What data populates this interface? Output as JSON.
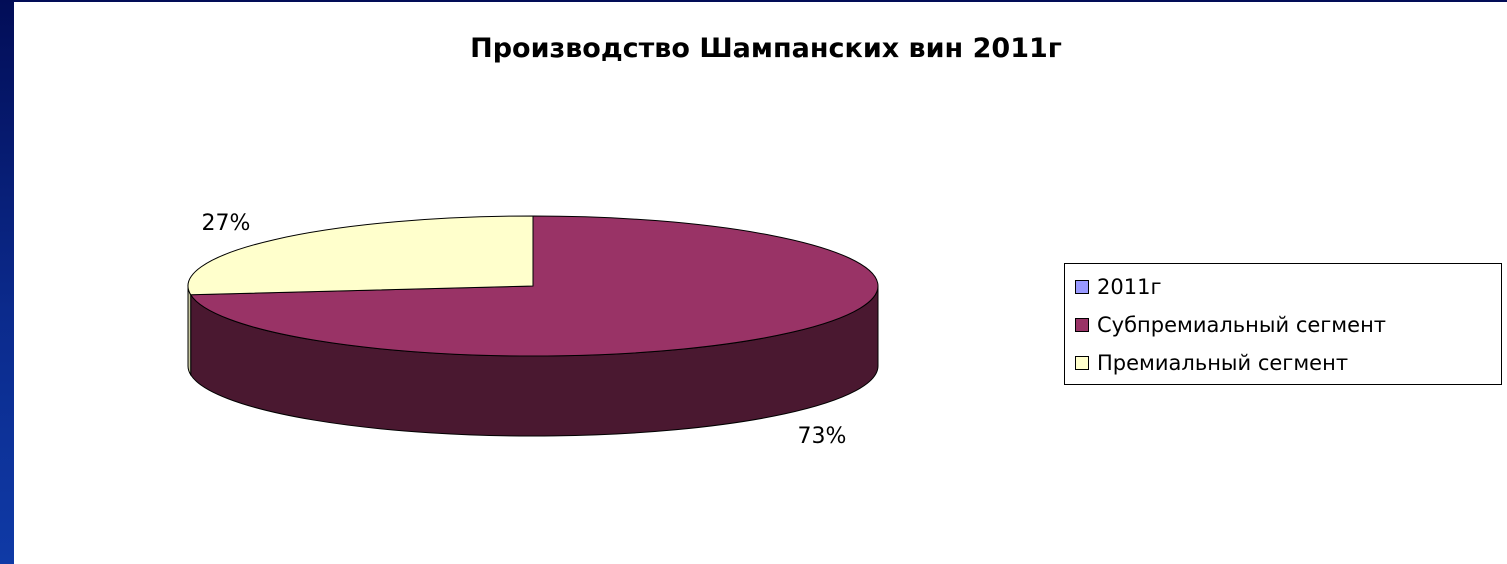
{
  "chart_data": {
    "type": "pie",
    "title": "Производство Шампанских вин 2011г",
    "legend_position": "right",
    "three_d": true,
    "legend": [
      {
        "label": "2011г",
        "color": "#9999ff"
      },
      {
        "label": "Субпремиальный сегмент",
        "color": "#993366"
      },
      {
        "label": "Премиальный сегмент",
        "color": "#ffffcc"
      }
    ],
    "slices": [
      {
        "name": "Субпремиальный сегмент",
        "value": 73,
        "label": "73%",
        "color": "#993366",
        "side_color": "#4a1830"
      },
      {
        "name": "Премиальный сегмент",
        "value": 27,
        "label": "27%",
        "color": "#ffffcc",
        "side_color": "#c8c8a0"
      }
    ]
  }
}
